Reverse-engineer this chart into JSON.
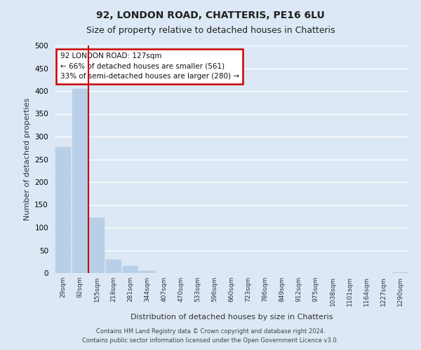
{
  "title": "92, LONDON ROAD, CHATTERIS, PE16 6LU",
  "subtitle": "Size of property relative to detached houses in Chatteris",
  "bar_labels": [
    "29sqm",
    "92sqm",
    "155sqm",
    "218sqm",
    "281sqm",
    "344sqm",
    "407sqm",
    "470sqm",
    "533sqm",
    "596sqm",
    "660sqm",
    "723sqm",
    "786sqm",
    "849sqm",
    "912sqm",
    "975sqm",
    "1038sqm",
    "1101sqm",
    "1164sqm",
    "1227sqm",
    "1290sqm"
  ],
  "bar_values": [
    277,
    405,
    122,
    29,
    15,
    4,
    0,
    0,
    0,
    0,
    0,
    0,
    0,
    0,
    0,
    0,
    0,
    0,
    0,
    0,
    2
  ],
  "bar_color": "#b8cfe8",
  "bar_edge_color": "#b8cfe8",
  "ylabel": "Number of detached properties",
  "xlabel": "Distribution of detached houses by size in Chatteris",
  "ylim": [
    0,
    500
  ],
  "yticks": [
    0,
    50,
    100,
    150,
    200,
    250,
    300,
    350,
    400,
    450,
    500
  ],
  "red_line_x": 1.5,
  "annotation_title": "92 LONDON ROAD: 127sqm",
  "annotation_line1": "← 66% of detached houses are smaller (561)",
  "annotation_line2": "33% of semi-detached houses are larger (280) →",
  "annotation_box_color": "#ffffff",
  "annotation_box_edge": "#cc0000",
  "red_line_color": "#cc0000",
  "footer1": "Contains HM Land Registry data © Crown copyright and database right 2024.",
  "footer2": "Contains public sector information licensed under the Open Government Licence v3.0.",
  "background_color": "#dce8f5",
  "plot_background": "#dce8f5",
  "grid_color": "#ffffff",
  "title_fontsize": 10,
  "subtitle_fontsize": 9
}
